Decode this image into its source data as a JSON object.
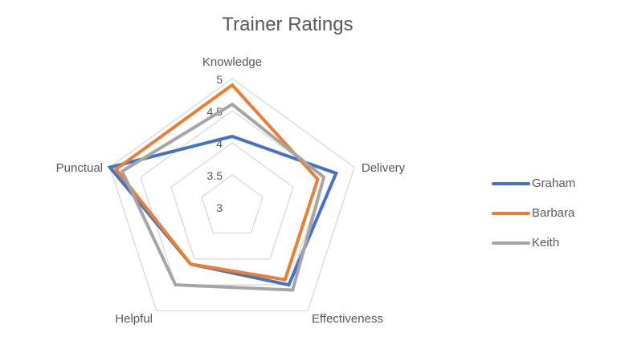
{
  "chart_data": {
    "type": "radar",
    "title": "Trainer Ratings",
    "categories": [
      "Knowledge",
      "Delivery",
      "Effectiveness",
      "Helpful",
      "Punctual"
    ],
    "series": [
      {
        "name": "Graham",
        "color": "#4472C4",
        "values": [
          4.1,
          4.7,
          4.5,
          4.1,
          5.0
        ]
      },
      {
        "name": "Barbara",
        "color": "#ED7D31",
        "values": [
          4.9,
          4.4,
          4.4,
          4.1,
          4.9
        ]
      },
      {
        "name": "Keith",
        "color": "#A5A5A5",
        "values": [
          4.6,
          4.5,
          4.6,
          4.5,
          4.8
        ]
      }
    ],
    "axis": {
      "min": 3,
      "max": 5,
      "step": 0.5,
      "tick_labels": [
        "3",
        "3.5",
        "4",
        "4.5",
        "5"
      ]
    },
    "grid": true,
    "legend_position": "right"
  },
  "colors": {
    "grid": "#D9D9D9",
    "text": "#595959"
  }
}
